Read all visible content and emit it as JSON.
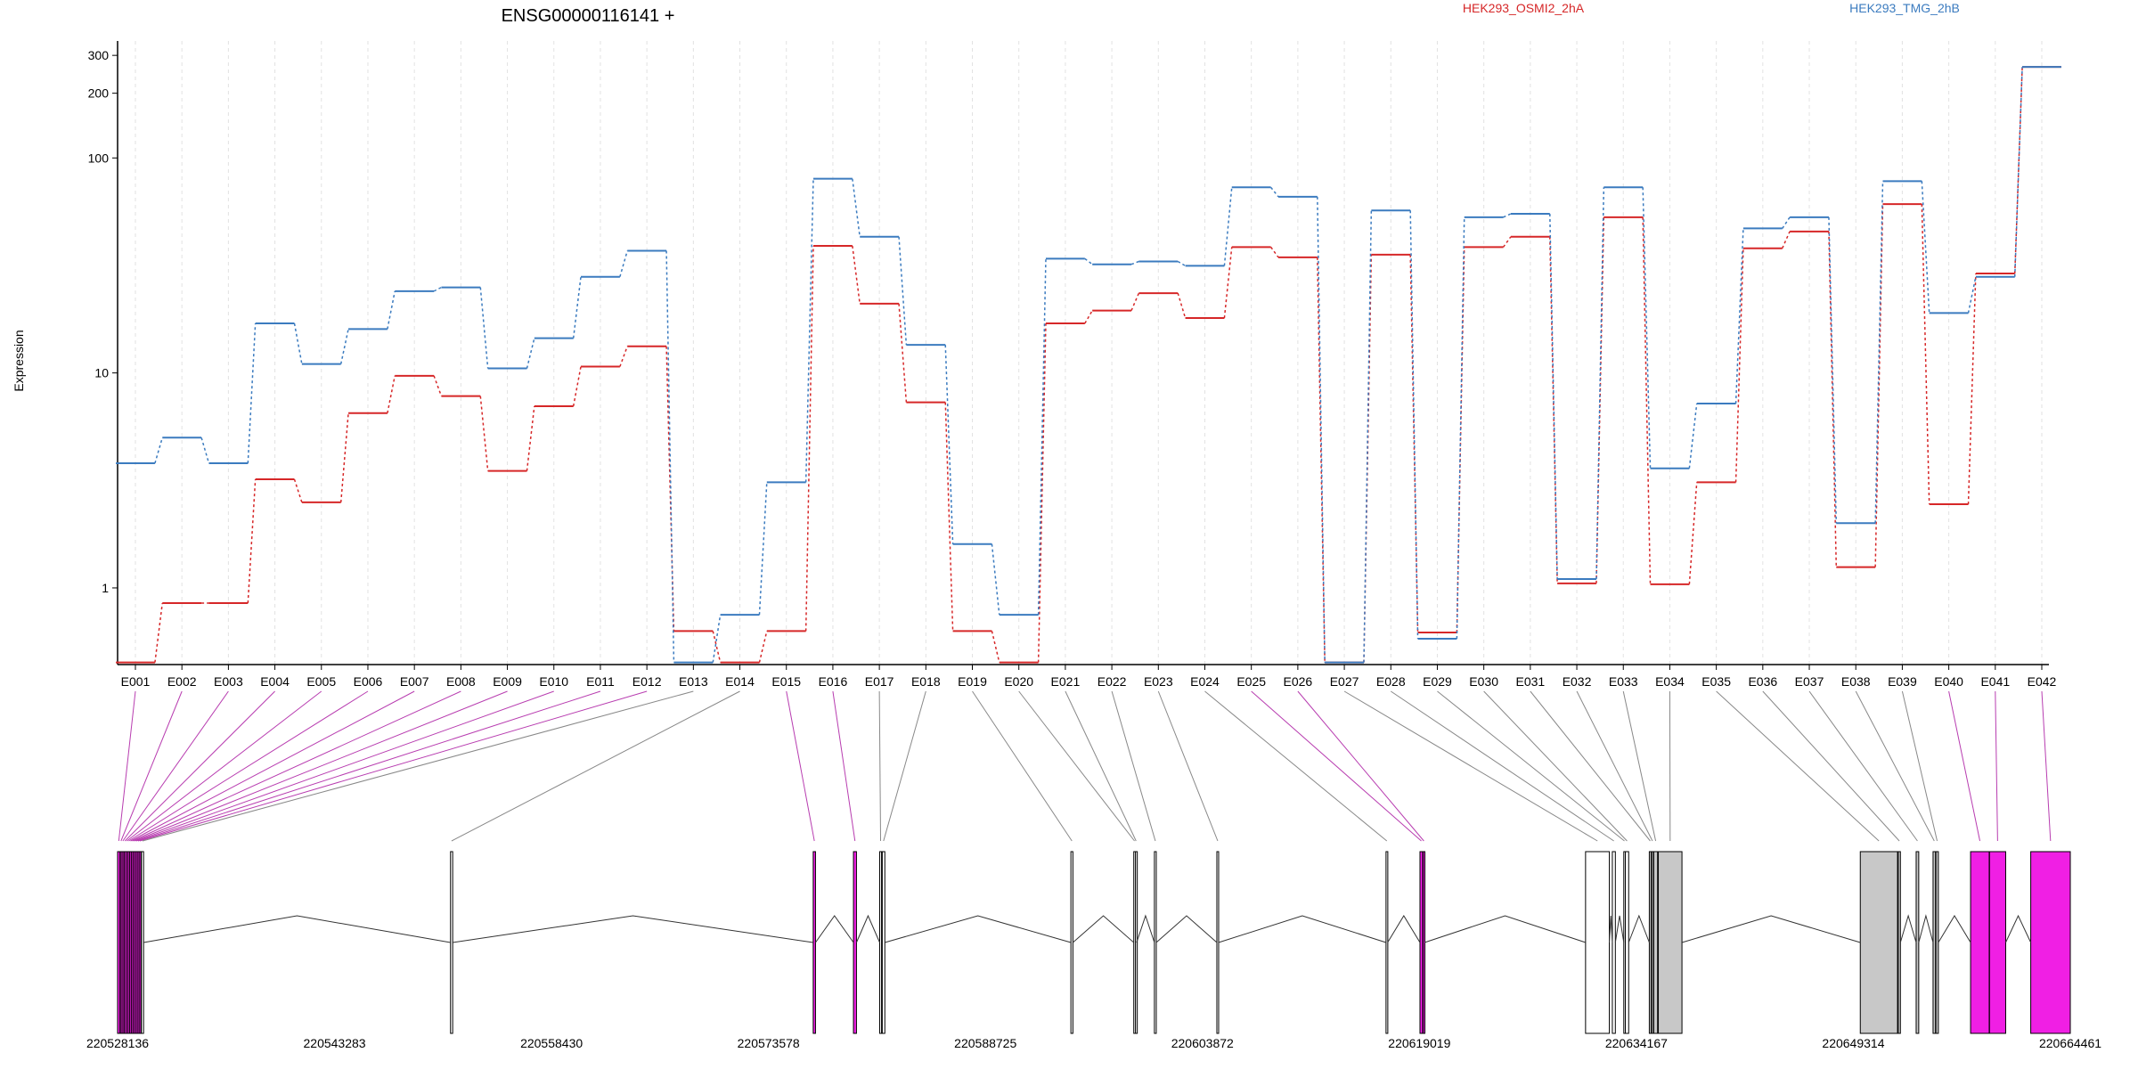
{
  "chart_data": {
    "type": "line",
    "title": "ENSG00000116141 +",
    "ylabel": "Expression",
    "yscale": "log",
    "yticks": [
      "1",
      "10",
      "100",
      "200",
      "300"
    ],
    "ylim": [
      0.44,
      350
    ],
    "categories": [
      "E001",
      "E002",
      "E003",
      "E004",
      "E005",
      "E006",
      "E007",
      "E008",
      "E009",
      "E010",
      "E011",
      "E012",
      "E013",
      "E014",
      "E015",
      "E016",
      "E017",
      "E018",
      "E019",
      "E020",
      "E021",
      "E022",
      "E023",
      "E024",
      "E025",
      "E026",
      "E027",
      "E028",
      "E029",
      "E030",
      "E031",
      "E032",
      "E033",
      "E034",
      "E035",
      "E036",
      "E037",
      "E038",
      "E039",
      "E040",
      "E041",
      "E042"
    ],
    "series": [
      {
        "name": "HEK293_OSMI2_2hA",
        "color": "#d62728",
        "values": [
          0.45,
          0.85,
          0.85,
          3.2,
          2.5,
          6.5,
          9.7,
          7.8,
          3.5,
          7.0,
          10.7,
          13.3,
          0.63,
          0.45,
          0.63,
          39,
          21,
          7.3,
          0.63,
          0.45,
          17,
          19.5,
          23.5,
          18,
          38.5,
          34.5,
          0.45,
          35.5,
          0.62,
          38.5,
          43,
          1.05,
          53,
          1.04,
          3.1,
          38,
          45.5,
          1.25,
          61,
          2.45,
          29,
          265
        ]
      },
      {
        "name": "HEK293_TMG_2hB",
        "color": "#3b7bbf",
        "values": [
          3.8,
          5.0,
          3.8,
          17,
          11,
          16,
          24,
          25,
          10.5,
          14.5,
          28,
          37,
          0.45,
          0.75,
          3.1,
          80,
          43,
          13.5,
          1.6,
          0.75,
          34,
          32,
          33,
          31.5,
          73,
          66,
          0.45,
          57,
          0.58,
          53,
          55,
          1.1,
          73,
          3.6,
          7.2,
          47,
          53,
          2.0,
          78,
          19,
          28,
          265
        ]
      }
    ],
    "genomic_axis": {
      "tick_labels": [
        "220528136",
        "220543283",
        "220558430",
        "220573578",
        "220588725",
        "220603872",
        "220619019",
        "220634167",
        "220649314",
        "220664461"
      ]
    },
    "exon_track": {
      "start": 220528136,
      "end": 220664461,
      "fill_colors": {
        "plain": "#ffffff",
        "flagged": "#f01fe4",
        "grey": "#c8c8c8"
      },
      "exons": [
        {
          "id": "E001",
          "start": 220528136,
          "end": 220528300,
          "fill": "flagged"
        },
        {
          "id": "E002",
          "start": 220528330,
          "end": 220528420,
          "fill": "flagged"
        },
        {
          "id": "E003",
          "start": 220528450,
          "end": 220528560,
          "fill": "flagged"
        },
        {
          "id": "E004",
          "start": 220528600,
          "end": 220528700,
          "fill": "flagged"
        },
        {
          "id": "E005",
          "start": 220528730,
          "end": 220528830,
          "fill": "flagged"
        },
        {
          "id": "E006",
          "start": 220528860,
          "end": 220528960,
          "fill": "flagged"
        },
        {
          "id": "E007",
          "start": 220528990,
          "end": 220529090,
          "fill": "flagged"
        },
        {
          "id": "E008",
          "start": 220529120,
          "end": 220529220,
          "fill": "flagged"
        },
        {
          "id": "E009",
          "start": 220529250,
          "end": 220529350,
          "fill": "flagged"
        },
        {
          "id": "E010",
          "start": 220529380,
          "end": 220529480,
          "fill": "flagged"
        },
        {
          "id": "E011",
          "start": 220529510,
          "end": 220529610,
          "fill": "flagged"
        },
        {
          "id": "E012",
          "start": 220529640,
          "end": 220529740,
          "fill": "flagged"
        },
        {
          "id": "E013",
          "start": 220529800,
          "end": 220529950,
          "fill": "plain"
        },
        {
          "id": "E014",
          "start": 220551380,
          "end": 220551530,
          "fill": "plain"
        },
        {
          "id": "E015",
          "start": 220576700,
          "end": 220576860,
          "fill": "flagged"
        },
        {
          "id": "E016",
          "start": 220579510,
          "end": 220579720,
          "fill": "flagged"
        },
        {
          "id": "E017",
          "start": 220581340,
          "end": 220581470,
          "fill": "plain"
        },
        {
          "id": "E018",
          "start": 220581520,
          "end": 220581700,
          "fill": "plain"
        },
        {
          "id": "E019",
          "start": 220594690,
          "end": 220594830,
          "fill": "plain"
        },
        {
          "id": "E020",
          "start": 220599080,
          "end": 220599180,
          "fill": "plain"
        },
        {
          "id": "E021",
          "start": 220599200,
          "end": 220599280,
          "fill": "plain"
        },
        {
          "id": "E022",
          "start": 220600520,
          "end": 220600650,
          "fill": "plain"
        },
        {
          "id": "E023",
          "start": 220604880,
          "end": 220605000,
          "fill": "plain"
        },
        {
          "id": "E024",
          "start": 220616690,
          "end": 220616800,
          "fill": "plain"
        },
        {
          "id": "E025",
          "start": 220619060,
          "end": 220619250,
          "fill": "flagged"
        },
        {
          "id": "E026",
          "start": 220619280,
          "end": 220619380,
          "fill": "flagged"
        },
        {
          "id": "E027",
          "start": 220630620,
          "end": 220632280,
          "fill": "plain"
        },
        {
          "id": "E028",
          "start": 220632490,
          "end": 220632700,
          "fill": "plain"
        },
        {
          "id": "E029",
          "start": 220633290,
          "end": 220633380,
          "fill": "plain"
        },
        {
          "id": "E030",
          "start": 220633400,
          "end": 220633630,
          "fill": "plain"
        },
        {
          "id": "E031",
          "start": 220635070,
          "end": 220635200,
          "fill": "grey"
        },
        {
          "id": "E032",
          "start": 220635230,
          "end": 220635350,
          "fill": "grey"
        },
        {
          "id": "E033",
          "start": 220635380,
          "end": 220635650,
          "fill": "grey"
        },
        {
          "id": "E034",
          "start": 220635700,
          "end": 220637350,
          "fill": "grey"
        },
        {
          "id": "E035",
          "start": 220649800,
          "end": 220652400,
          "fill": "grey"
        },
        {
          "id": "E036",
          "start": 220652450,
          "end": 220652600,
          "fill": "grey"
        },
        {
          "id": "E037",
          "start": 220653700,
          "end": 220653880,
          "fill": "grey"
        },
        {
          "id": "E038",
          "start": 220654880,
          "end": 220655050,
          "fill": "grey"
        },
        {
          "id": "E039",
          "start": 220655080,
          "end": 220655250,
          "fill": "grey"
        },
        {
          "id": "E040",
          "start": 220657500,
          "end": 220658800,
          "fill": "flagged"
        },
        {
          "id": "E041",
          "start": 220658820,
          "end": 220659950,
          "fill": "flagged"
        },
        {
          "id": "E042",
          "start": 220661700,
          "end": 220664461,
          "fill": "flagged"
        }
      ]
    }
  }
}
